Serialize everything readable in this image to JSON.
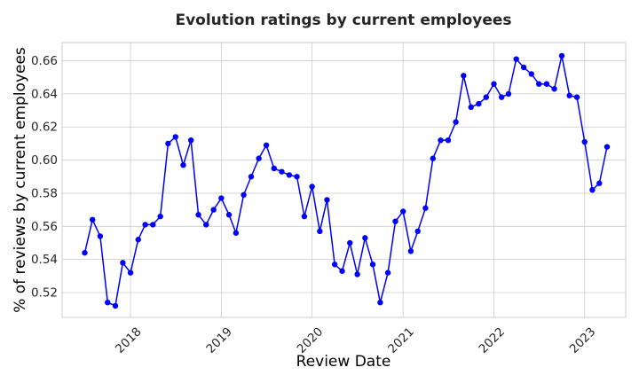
{
  "chart_data": {
    "type": "line",
    "title": "Evolution ratings by current employees",
    "xlabel": "Review Date",
    "ylabel": "% of reviews by current employees",
    "xlim": [
      "2017-04-01",
      "2023-06-15"
    ],
    "ylim": [
      0.505,
      0.671
    ],
    "x_ticks": [
      "2018",
      "2019",
      "2020",
      "2021",
      "2022",
      "2023"
    ],
    "y_ticks": [
      "0.52",
      "0.54",
      "0.56",
      "0.58",
      "0.60",
      "0.62",
      "0.64",
      "0.66"
    ],
    "grid": true,
    "legend": "none",
    "series": [
      {
        "color": "#0000ff",
        "marker": "circle",
        "x": [
          "2017-07",
          "2017-08",
          "2017-09",
          "2017-10",
          "2017-11",
          "2017-12",
          "2018-01",
          "2018-02",
          "2018-03",
          "2018-04",
          "2018-05",
          "2018-06",
          "2018-07",
          "2018-08",
          "2018-09",
          "2018-10",
          "2018-11",
          "2018-12",
          "2019-01",
          "2019-02",
          "2019-03",
          "2019-04",
          "2019-05",
          "2019-06",
          "2019-07",
          "2019-08",
          "2019-09",
          "2019-10",
          "2019-11",
          "2019-12",
          "2020-01",
          "2020-02",
          "2020-03",
          "2020-04",
          "2020-05",
          "2020-06",
          "2020-07",
          "2020-08",
          "2020-09",
          "2020-10",
          "2020-11",
          "2020-12",
          "2021-01",
          "2021-02",
          "2021-03",
          "2021-04",
          "2021-05",
          "2021-06",
          "2021-07",
          "2021-08",
          "2021-09",
          "2021-10",
          "2021-11",
          "2021-12",
          "2022-01",
          "2022-02",
          "2022-03",
          "2022-04",
          "2022-05",
          "2022-06",
          "2022-07",
          "2022-08",
          "2022-09",
          "2022-10",
          "2022-11",
          "2022-12",
          "2023-01",
          "2023-02",
          "2023-03",
          "2023-04"
        ],
        "values": [
          0.544,
          0.564,
          0.554,
          0.514,
          0.512,
          0.538,
          0.532,
          0.552,
          0.561,
          0.561,
          0.566,
          0.61,
          0.614,
          0.597,
          0.612,
          0.567,
          0.561,
          0.57,
          0.577,
          0.567,
          0.556,
          0.579,
          0.59,
          0.601,
          0.609,
          0.595,
          0.593,
          0.591,
          0.59,
          0.566,
          0.584,
          0.557,
          0.576,
          0.537,
          0.533,
          0.55,
          0.531,
          0.553,
          0.537,
          0.514,
          0.532,
          0.563,
          0.569,
          0.545,
          0.557,
          0.571,
          0.601,
          0.612,
          0.612,
          0.623,
          0.651,
          0.632,
          0.634,
          0.638,
          0.646,
          0.638,
          0.64,
          0.661,
          0.656,
          0.652,
          0.646,
          0.646,
          0.643,
          0.663,
          0.639,
          0.638,
          0.611,
          0.582,
          0.586,
          0.608
        ]
      }
    ]
  }
}
